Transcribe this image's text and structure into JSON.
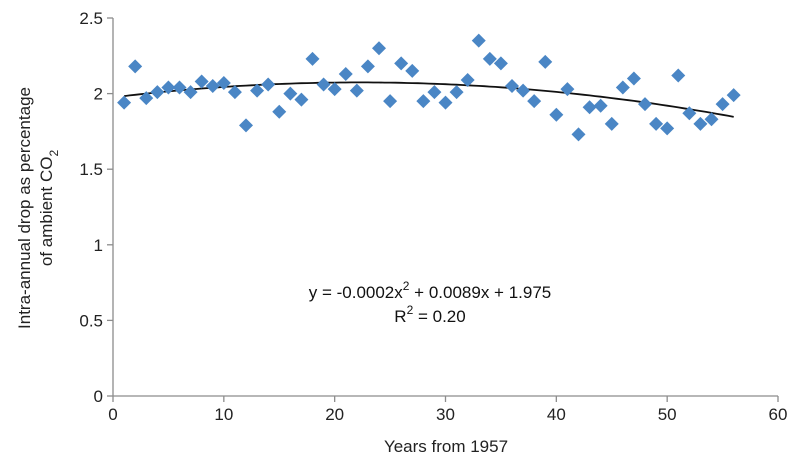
{
  "chart_data": {
    "type": "scatter",
    "xlabel": "Years from 1957",
    "ylabel_line1": "Intra-annual drop as percentage",
    "ylabel_line2_main": "of ambient CO",
    "ylabel_line2_sub": "2",
    "xlim": [
      0,
      60
    ],
    "ylim": [
      0,
      2.5
    ],
    "xticks": [
      0,
      10,
      20,
      30,
      40,
      50,
      60
    ],
    "yticks": [
      0,
      0.5,
      1,
      1.5,
      2,
      2.5
    ],
    "xtick_labels": [
      "0",
      "10",
      "20",
      "30",
      "40",
      "50",
      "60"
    ],
    "ytick_labels": [
      "0",
      "0.5",
      "1",
      "1.5",
      "2",
      "2.5"
    ],
    "marker": "diamond",
    "marker_color": "#4a86c5",
    "trend_color": "#111111",
    "grid": false,
    "legend": "none",
    "series": [
      {
        "x": [
          1,
          2,
          3,
          4,
          5,
          6,
          7,
          8,
          9,
          10,
          11,
          12,
          13,
          14,
          15,
          16,
          17,
          18,
          19,
          20,
          21,
          22,
          23,
          24,
          25,
          26,
          27,
          28,
          29,
          30,
          31,
          32,
          33,
          34,
          35,
          36,
          37,
          38,
          39,
          40,
          41,
          42,
          43,
          44,
          45,
          46,
          47,
          48,
          49,
          50,
          51,
          52,
          53,
          54,
          55,
          56
        ],
        "y": [
          1.94,
          2.18,
          1.97,
          2.01,
          2.04,
          2.04,
          2.01,
          2.08,
          2.05,
          2.07,
          2.01,
          1.79,
          2.02,
          2.06,
          1.88,
          2.0,
          1.96,
          2.23,
          2.06,
          2.03,
          2.13,
          2.02,
          2.18,
          2.3,
          1.95,
          2.2,
          2.15,
          1.95,
          2.01,
          1.94,
          2.01,
          2.09,
          2.35,
          2.23,
          2.2,
          2.05,
          2.02,
          1.95,
          2.21,
          1.86,
          2.03,
          1.73,
          1.91,
          1.92,
          1.8,
          2.04,
          2.1,
          1.93,
          1.8,
          1.77,
          2.12,
          1.87,
          1.8,
          1.83,
          1.93,
          1.99
        ]
      }
    ],
    "trendline": {
      "type": "polynomial",
      "order": 2,
      "coefficients": [
        -0.0002,
        0.0089,
        1.975
      ],
      "x_range": [
        1,
        56
      ],
      "equation_prefix": "y = -0.0002x",
      "equation_sup": "2",
      "equation_suffix": " + 0.0089x + 1.975",
      "r2_prefix": "R",
      "r2_sup": "2",
      "r2_suffix": " = 0.20"
    }
  }
}
